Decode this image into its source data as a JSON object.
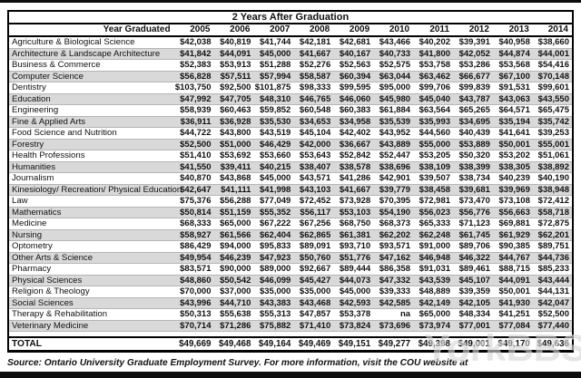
{
  "chart_data": {
    "type": "table",
    "title": "2 Years After Graduation",
    "row_header": "Year Graduated",
    "columns": [
      "2005",
      "2006",
      "2007",
      "2008",
      "2009",
      "2010",
      "2011",
      "2012",
      "2013",
      "2014"
    ],
    "rows": [
      {
        "label": "Agriculture & Biological Science",
        "values": [
          "$42,038",
          "$40,819",
          "$41,744",
          "$42,181",
          "$42,681",
          "$43,466",
          "$40,202",
          "$39,391",
          "$40,958",
          "$38,660"
        ]
      },
      {
        "label": "Architecture & Landscape Architecture",
        "values": [
          "$41,842",
          "$44,091",
          "$45,000",
          "$41,667",
          "$40,167",
          "$40,733",
          "$41,800",
          "$42,052",
          "$44,874",
          "$44,001"
        ]
      },
      {
        "label": "Business & Commerce",
        "values": [
          "$52,383",
          "$53,913",
          "$51,288",
          "$52,276",
          "$52,563",
          "$52,575",
          "$53,758",
          "$53,286",
          "$53,568",
          "$54,416"
        ]
      },
      {
        "label": "Computer Science",
        "values": [
          "$56,828",
          "$57,511",
          "$57,994",
          "$58,587",
          "$60,394",
          "$63,044",
          "$63,462",
          "$66,677",
          "$67,100",
          "$70,148"
        ]
      },
      {
        "label": "Dentistry",
        "values": [
          "$103,750",
          "$92,500",
          "$101,875",
          "$98,333",
          "$99,595",
          "$95,000",
          "$99,706",
          "$99,839",
          "$91,531",
          "$99,601"
        ]
      },
      {
        "label": "Education",
        "values": [
          "$47,992",
          "$47,705",
          "$48,310",
          "$46,765",
          "$46,060",
          "$45,980",
          "$45,040",
          "$43,787",
          "$43,063",
          "$43,550"
        ]
      },
      {
        "label": "Engineering",
        "values": [
          "$58,939",
          "$60,463",
          "$59,852",
          "$60,548",
          "$60,383",
          "$61,884",
          "$63,564",
          "$65,265",
          "$64,571",
          "$65,475"
        ]
      },
      {
        "label": "Fine & Applied Arts",
        "values": [
          "$36,911",
          "$36,928",
          "$35,530",
          "$34,653",
          "$34,958",
          "$35,539",
          "$35,993",
          "$34,695",
          "$35,194",
          "$35,742"
        ]
      },
      {
        "label": "Food Science and Nutrition",
        "values": [
          "$44,722",
          "$43,800",
          "$43,519",
          "$45,104",
          "$42,402",
          "$43,952",
          "$44,560",
          "$40,439",
          "$41,641",
          "$39,253"
        ]
      },
      {
        "label": "Forestry",
        "values": [
          "$52,500",
          "$51,000",
          "$46,429",
          "$42,000",
          "$36,667",
          "$43,889",
          "$55,000",
          "$53,889",
          "$50,001",
          "$55,001"
        ]
      },
      {
        "label": "Health Professions",
        "values": [
          "$51,410",
          "$53,692",
          "$53,660",
          "$53,643",
          "$52,842",
          "$52,447",
          "$53,205",
          "$50,320",
          "$53,202",
          "$51,061"
        ]
      },
      {
        "label": "Humanities",
        "values": [
          "$41,550",
          "$39,411",
          "$40,215",
          "$38,407",
          "$38,578",
          "$38,696",
          "$38,109",
          "$38,399",
          "$38,305",
          "$38,892"
        ]
      },
      {
        "label": "Journalism",
        "values": [
          "$40,870",
          "$43,868",
          "$45,000",
          "$43,571",
          "$41,286",
          "$42,901",
          "$39,507",
          "$38,734",
          "$40,239",
          "$40,190"
        ]
      },
      {
        "label": "Kinesiology/ Recreation/ Physical Education",
        "values": [
          "$42,647",
          "$41,111",
          "$41,998",
          "$43,103",
          "$41,667",
          "$39,779",
          "$38,458",
          "$39,681",
          "$39,969",
          "$38,948"
        ]
      },
      {
        "label": "Law",
        "values": [
          "$75,376",
          "$56,288",
          "$77,049",
          "$72,452",
          "$73,928",
          "$70,395",
          "$72,981",
          "$73,470",
          "$73,108",
          "$72,412"
        ]
      },
      {
        "label": "Mathematics",
        "values": [
          "$50,814",
          "$51,159",
          "$55,352",
          "$56,117",
          "$53,103",
          "$54,190",
          "$56,023",
          "$56,776",
          "$56,663",
          "$58,718"
        ]
      },
      {
        "label": "Medicine",
        "values": [
          "$68,333",
          "$65,000",
          "$67,222",
          "$67,256",
          "$68,750",
          "$68,373",
          "$65,333",
          "$71,123",
          "$69,881",
          "$72,875"
        ]
      },
      {
        "label": "Nursing",
        "values": [
          "$58,927",
          "$61,566",
          "$62,404",
          "$62,865",
          "$61,381",
          "$62,202",
          "$62,248",
          "$61,745",
          "$61,929",
          "$62,201"
        ]
      },
      {
        "label": "Optometry",
        "values": [
          "$86,429",
          "$94,000",
          "$95,833",
          "$89,091",
          "$93,710",
          "$93,571",
          "$91,000",
          "$89,706",
          "$90,385",
          "$89,751"
        ]
      },
      {
        "label": "Other Arts & Science",
        "values": [
          "$49,954",
          "$46,239",
          "$47,923",
          "$50,760",
          "$51,776",
          "$47,162",
          "$46,948",
          "$46,322",
          "$44,767",
          "$44,736"
        ]
      },
      {
        "label": "Pharmacy",
        "values": [
          "$83,571",
          "$90,000",
          "$89,000",
          "$92,667",
          "$89,444",
          "$86,358",
          "$91,031",
          "$89,461",
          "$88,715",
          "$85,233"
        ]
      },
      {
        "label": "Physical Sciences",
        "values": [
          "$48,860",
          "$50,542",
          "$46,099",
          "$45,427",
          "$44,073",
          "$47,332",
          "$43,539",
          "$45,107",
          "$44,091",
          "$43,444"
        ]
      },
      {
        "label": "Religion & Theology",
        "values": [
          "$70,000",
          "$37,000",
          "$35,000",
          "$35,000",
          "$45,000",
          "$39,333",
          "$48,889",
          "$39,359",
          "$50,001",
          "$44,131"
        ]
      },
      {
        "label": "Social Sciences",
        "values": [
          "$43,996",
          "$44,710",
          "$43,383",
          "$43,468",
          "$42,593",
          "$42,585",
          "$42,149",
          "$42,105",
          "$41,930",
          "$42,047"
        ]
      },
      {
        "label": "Therapy & Rehabilitation",
        "values": [
          "$50,313",
          "$55,638",
          "$55,313",
          "$47,857",
          "$53,378",
          "na",
          "$65,000",
          "$48,334",
          "$41,251",
          "$52,500"
        ]
      },
      {
        "label": "Veterinary Medicine",
        "values": [
          "$70,714",
          "$71,286",
          "$75,882",
          "$71,410",
          "$73,824",
          "$73,696",
          "$73,974",
          "$77,001",
          "$77,084",
          "$77,440"
        ]
      }
    ],
    "total": {
      "label": "TOTAL",
      "values": [
        "$49,669",
        "$49,468",
        "$49,164",
        "$49,469",
        "$49,151",
        "$49,277",
        "$49,398",
        "$49,001",
        "$49,170",
        "$49,636"
      ]
    },
    "layout_hints": {
      "stripes": "alternating white/gray starting white",
      "values_alignment": "right",
      "grid": "thin horizontal lines"
    }
  },
  "footer": {
    "source": "Source: Ontario University Graduate Employment Survey. For more information, visit the COU website at"
  },
  "watermark": "YorkBBS",
  "colors": {
    "stripe": "#d9d9d9",
    "row_white": "#ffffff",
    "border": "#000000",
    "gridline": "#b5b5b5",
    "watermark": "#d7d7d7"
  }
}
